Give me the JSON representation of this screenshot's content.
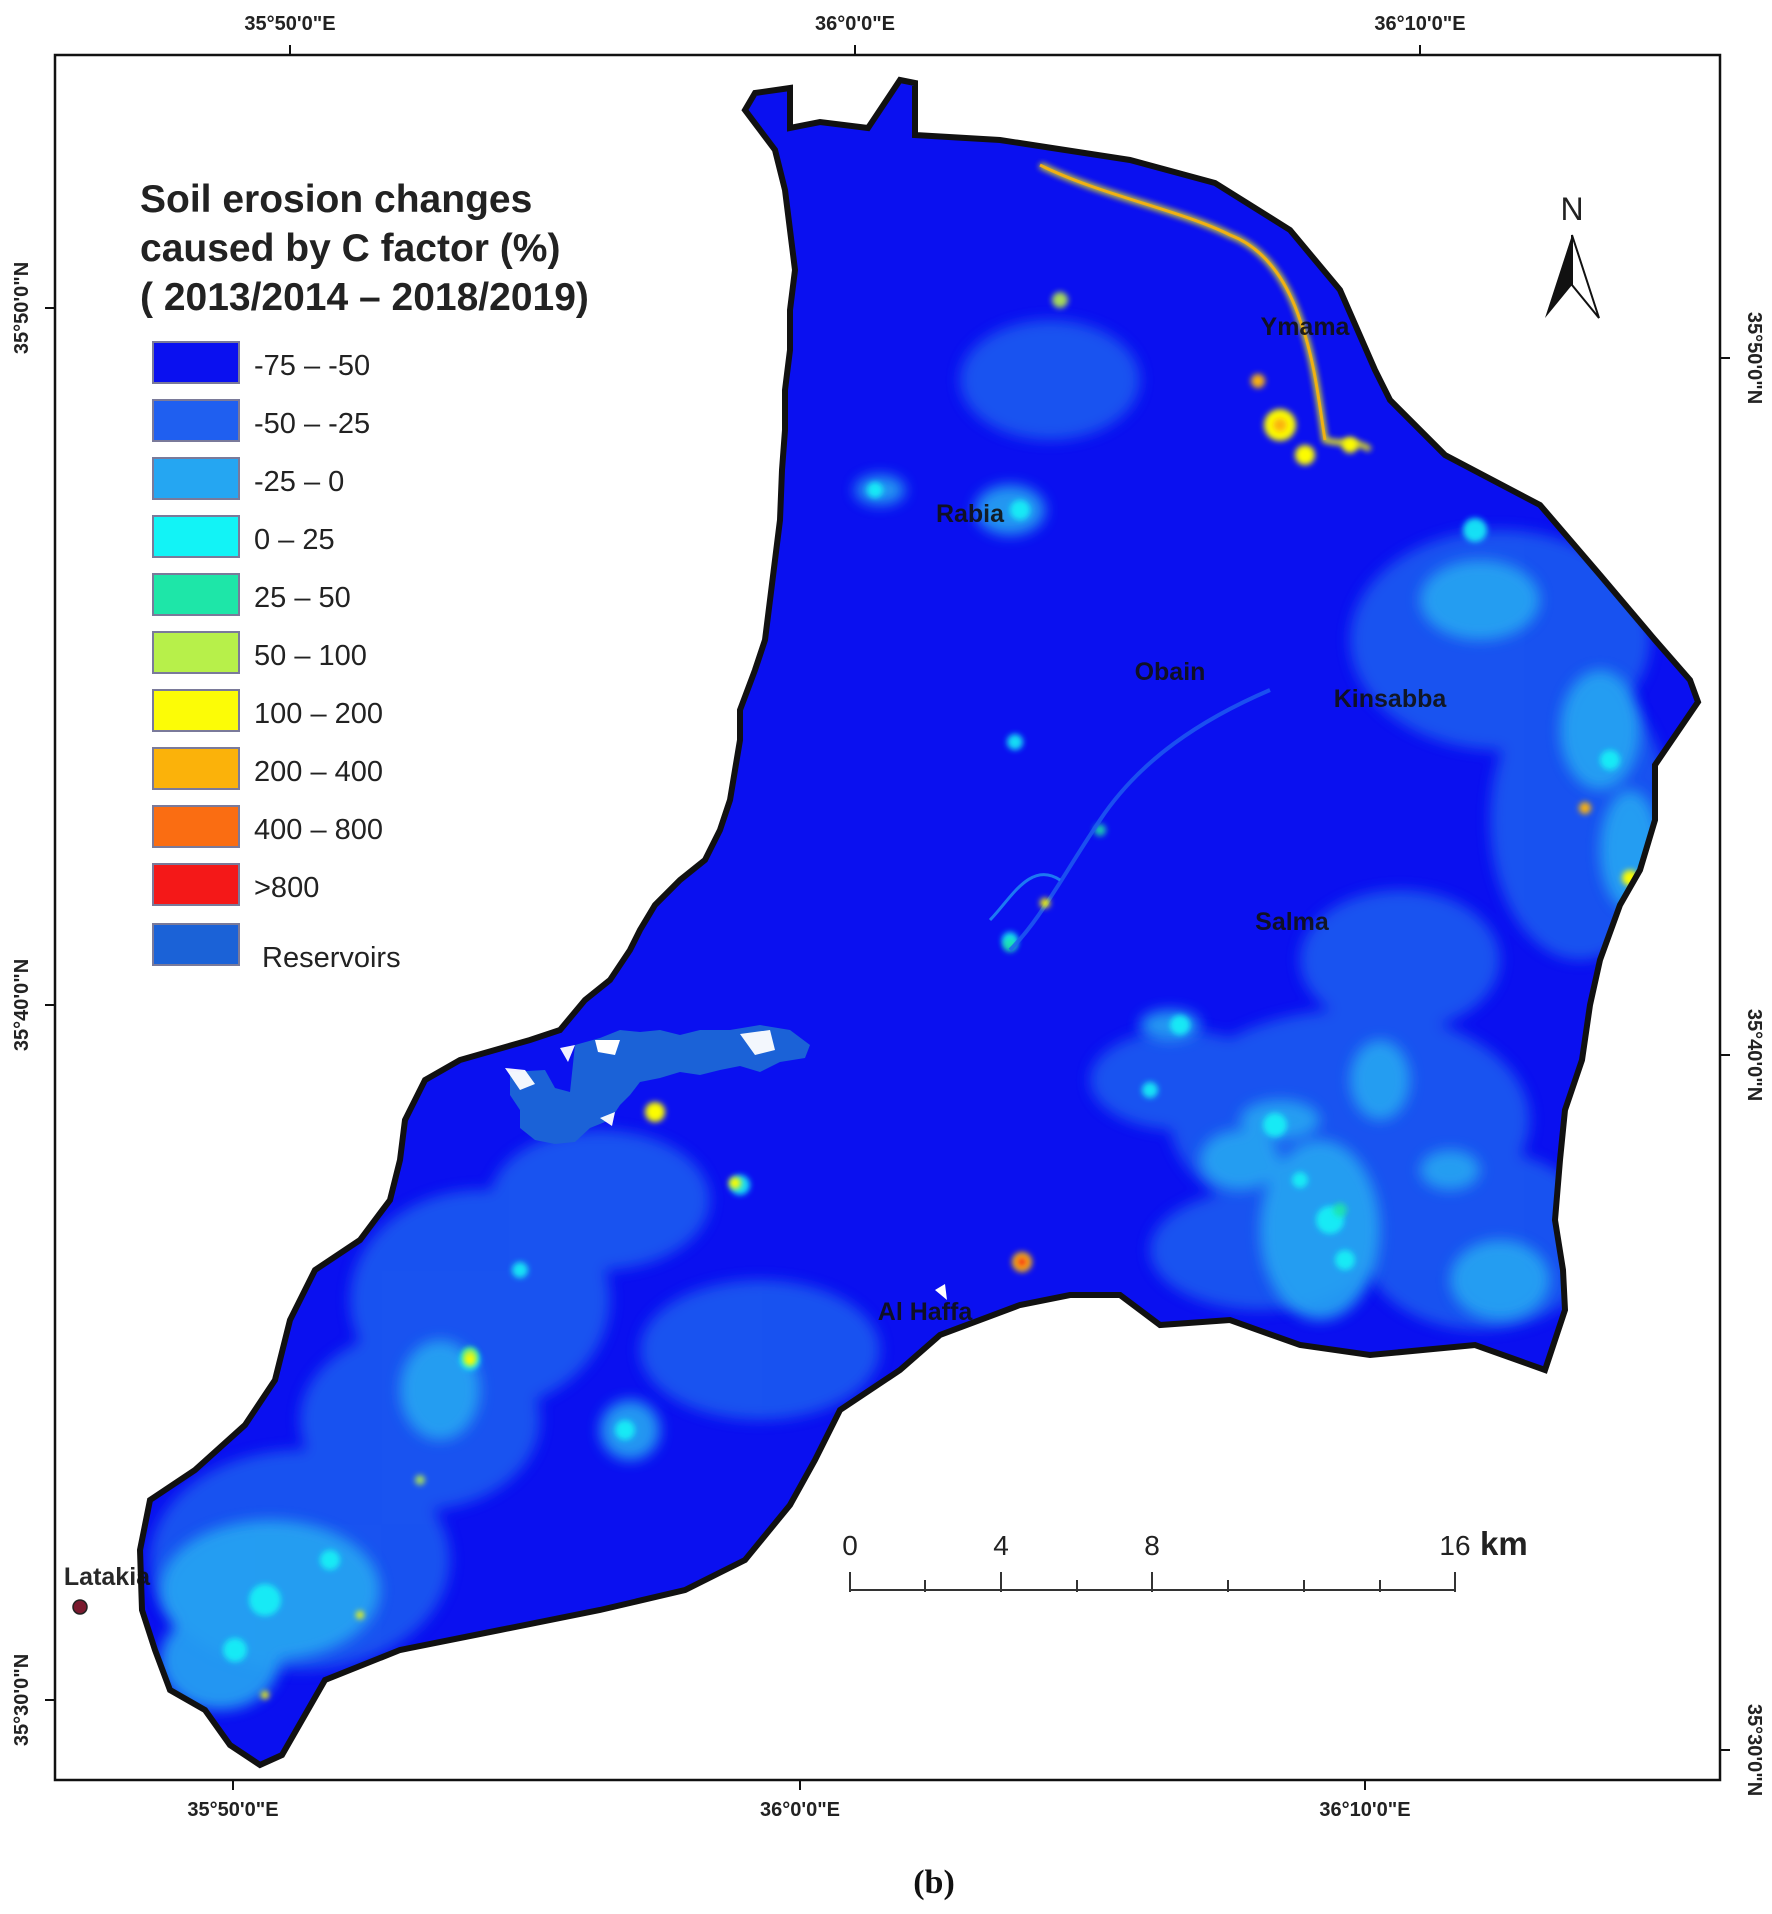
{
  "map": {
    "top_longitudes": [
      "35°50'0\"E",
      "36°0'0\"E",
      "36°10'0\"E"
    ],
    "bottom_longitudes": [
      "35°50'0\"E",
      "36°0'0\"E",
      "36°10'0\"E"
    ],
    "left_latitudes": [
      "35°50'0\"N",
      "35°40'0\"N",
      "35°30'0\"N"
    ],
    "right_latitudes": [
      "35°50'0\"N",
      "35°40'0\"N",
      "35°30'0\"N"
    ],
    "places": [
      "Ymama",
      "Rabia",
      "Obain",
      "Kinsabba",
      "Salma",
      "Al Haffa",
      "Latakia"
    ],
    "north_label": "N",
    "scale": {
      "ticks": [
        "0",
        "4",
        "8",
        "16"
      ],
      "unit": "km"
    },
    "caption": "(b)"
  },
  "legend": {
    "title_lines": [
      "Soil erosion  changes",
      "caused by C factor (%)",
      "( 2013/2014 – 2018/2019)"
    ],
    "items": [
      {
        "label": "-75 – -50",
        "color": "#0a10f0"
      },
      {
        "label": "-50 – -25",
        "color": "#1f5ff0"
      },
      {
        "label": "-25 –  0",
        "color": "#25a6f2"
      },
      {
        "label": "0 – 25",
        "color": "#12f3f6"
      },
      {
        "label": "25 – 50",
        "color": "#1ee6a8"
      },
      {
        "label": "50 – 100",
        "color": "#b7f04a"
      },
      {
        "label": "100 – 200",
        "color": "#fcfc06"
      },
      {
        "label": "200 – 400",
        "color": "#fbb20a"
      },
      {
        "label": "400 – 800",
        "color": "#fa6d12"
      },
      {
        "label": ">800",
        "color": "#f41818"
      },
      {
        "label": "Reservoirs",
        "color": "#1b62d7"
      }
    ]
  }
}
